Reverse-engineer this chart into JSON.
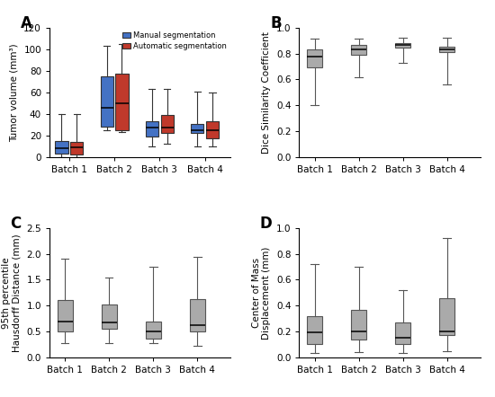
{
  "panel_A": {
    "title": "A",
    "ylabel": "Tumor volume (mm³)",
    "categories": [
      "Batch 1",
      "Batch 2",
      "Batch 3",
      "Batch 4"
    ],
    "ylim": [
      0,
      120
    ],
    "yticks": [
      0,
      20,
      40,
      60,
      80,
      100,
      120
    ],
    "manual": {
      "color": "#4472c4",
      "boxes": [
        {
          "whislo": 0,
          "q1": 3,
          "med": 8,
          "q3": 15,
          "whishi": 40
        },
        {
          "whislo": 25,
          "q1": 28,
          "med": 46,
          "q3": 75,
          "whishi": 103
        },
        {
          "whislo": 10,
          "q1": 19,
          "med": 27,
          "q3": 33,
          "whishi": 63
        },
        {
          "whislo": 10,
          "q1": 22,
          "med": 25,
          "q3": 31,
          "whishi": 61
        }
      ]
    },
    "automatic": {
      "color": "#c0392b",
      "boxes": [
        {
          "whislo": 0,
          "q1": 2,
          "med": 9,
          "q3": 14,
          "whishi": 40
        },
        {
          "whislo": 23,
          "q1": 25,
          "med": 50,
          "q3": 77,
          "whishi": 105
        },
        {
          "whislo": 12,
          "q1": 22,
          "med": 27,
          "q3": 39,
          "whishi": 63
        },
        {
          "whislo": 10,
          "q1": 17,
          "med": 25,
          "q3": 33,
          "whishi": 60
        }
      ]
    },
    "legend_labels": [
      "Manual segmentation",
      "Automatic segmentation"
    ]
  },
  "panel_B": {
    "title": "B",
    "ylabel": "Dice Similarity Coefficient",
    "categories": [
      "Batch 1",
      "Batch 2",
      "Batch 3",
      "Batch 4"
    ],
    "ylim": [
      0.0,
      1.0
    ],
    "yticks": [
      0.0,
      0.2,
      0.4,
      0.6,
      0.8,
      1.0
    ],
    "boxes": [
      {
        "whislo": 0.4,
        "q1": 0.695,
        "med": 0.775,
        "q3": 0.835,
        "whishi": 0.915
      },
      {
        "whislo": 0.62,
        "q1": 0.79,
        "med": 0.83,
        "q3": 0.865,
        "whishi": 0.915
      },
      {
        "whislo": 0.73,
        "q1": 0.845,
        "med": 0.865,
        "q3": 0.88,
        "whishi": 0.92
      },
      {
        "whislo": 0.56,
        "q1": 0.815,
        "med": 0.835,
        "q3": 0.855,
        "whishi": 0.92
      }
    ]
  },
  "panel_C": {
    "title": "C",
    "ylabel": "95th percentile\nHausdorff Distance (mm)",
    "categories": [
      "Batch 1",
      "Batch 2",
      "Batch 3",
      "Batch 4"
    ],
    "ylim": [
      0.0,
      2.5
    ],
    "yticks": [
      0.0,
      0.5,
      1.0,
      1.5,
      2.0,
      2.5
    ],
    "boxes": [
      {
        "whislo": 0.28,
        "q1": 0.5,
        "med": 0.7,
        "q3": 1.1,
        "whishi": 1.9
      },
      {
        "whislo": 0.28,
        "q1": 0.55,
        "med": 0.68,
        "q3": 1.02,
        "whishi": 1.55
      },
      {
        "whislo": 0.28,
        "q1": 0.37,
        "med": 0.5,
        "q3": 0.7,
        "whishi": 1.75
      },
      {
        "whislo": 0.22,
        "q1": 0.5,
        "med": 0.62,
        "q3": 1.12,
        "whishi": 1.95
      }
    ]
  },
  "panel_D": {
    "title": "D",
    "ylabel": "Center of Mass\nDisplacement (mm)",
    "categories": [
      "Batch 1",
      "Batch 2",
      "Batch 3",
      "Batch 4"
    ],
    "ylim": [
      0.0,
      1.0
    ],
    "yticks": [
      0.0,
      0.2,
      0.4,
      0.6,
      0.8,
      1.0
    ],
    "boxes": [
      {
        "whislo": 0.03,
        "q1": 0.1,
        "med": 0.19,
        "q3": 0.32,
        "whishi": 0.72
      },
      {
        "whislo": 0.04,
        "q1": 0.14,
        "med": 0.2,
        "q3": 0.37,
        "whishi": 0.7
      },
      {
        "whislo": 0.03,
        "q1": 0.1,
        "med": 0.15,
        "q3": 0.27,
        "whishi": 0.52
      },
      {
        "whislo": 0.05,
        "q1": 0.17,
        "med": 0.2,
        "q3": 0.46,
        "whishi": 0.92
      }
    ]
  },
  "box_color": "#aaaaaa",
  "box_edge_color": "#555555",
  "median_color": "#000000",
  "whisker_color": "#555555",
  "background_color": "#ffffff",
  "fontsize": 7.5,
  "label_fontsize": 7.5,
  "title_fontsize": 12,
  "linewidth": 0.8
}
